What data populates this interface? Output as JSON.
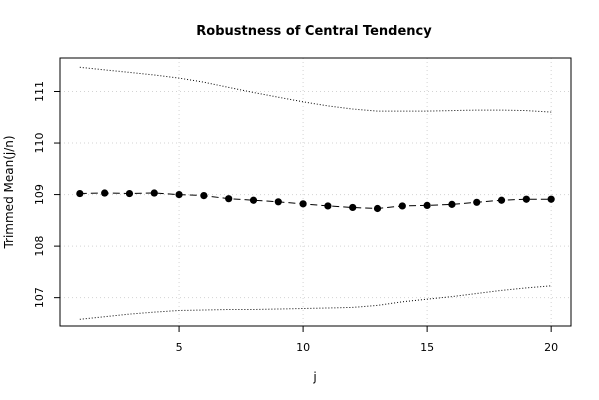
{
  "chart_data": {
    "type": "line",
    "title": "Robustness of Central Tendency",
    "xlabel": "j",
    "ylabel": "Trimmed Mean(j/n)",
    "xlim": [
      0.2,
      20.8
    ],
    "ylim": [
      106.45,
      111.65
    ],
    "x_ticks": [
      5,
      10,
      15,
      20
    ],
    "y_ticks": [
      107,
      108,
      109,
      110,
      111
    ],
    "grid": true,
    "x": [
      1,
      2,
      3,
      4,
      5,
      6,
      7,
      8,
      9,
      10,
      11,
      12,
      13,
      14,
      15,
      16,
      17,
      18,
      19,
      20
    ],
    "series": [
      {
        "role": "mean",
        "style": "dashed line with filled points",
        "values": [
          109.02,
          109.03,
          109.02,
          109.03,
          109.0,
          108.98,
          108.92,
          108.89,
          108.86,
          108.82,
          108.78,
          108.75,
          108.73,
          108.78,
          108.79,
          108.81,
          108.85,
          108.89,
          108.91,
          108.91
        ]
      },
      {
        "role": "upper-bound",
        "style": "dotted",
        "values": [
          111.47,
          111.42,
          111.37,
          111.32,
          111.26,
          111.18,
          111.08,
          110.98,
          110.89,
          110.8,
          110.72,
          110.66,
          110.62,
          110.62,
          110.62,
          110.63,
          110.64,
          110.64,
          110.63,
          110.6
        ]
      },
      {
        "role": "lower-bound",
        "style": "dotted",
        "values": [
          106.58,
          106.63,
          106.68,
          106.72,
          106.75,
          106.76,
          106.77,
          106.77,
          106.78,
          106.79,
          106.8,
          106.81,
          106.85,
          106.92,
          106.97,
          107.02,
          107.08,
          107.14,
          107.19,
          107.23
        ]
      }
    ]
  }
}
